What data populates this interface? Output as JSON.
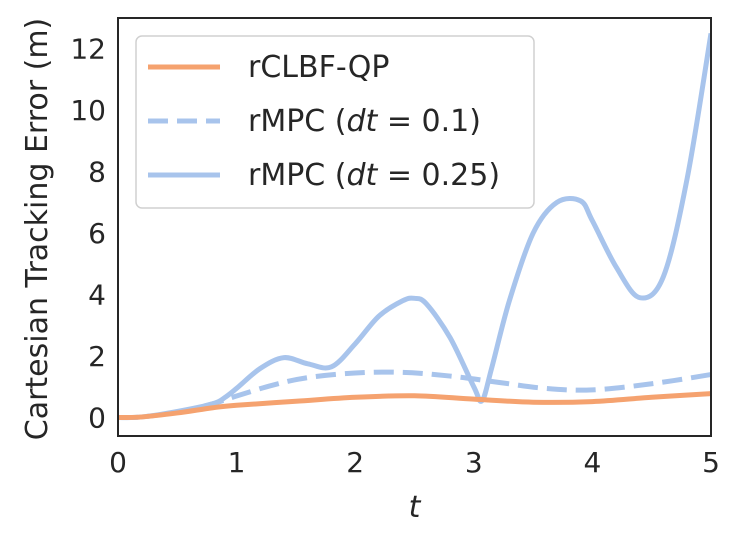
{
  "chart_data": {
    "type": "line",
    "xlabel": "t",
    "ylabel": "Cartesian Tracking Error (m)",
    "xlim": [
      0,
      5
    ],
    "ylim": [
      -0.6,
      13.0
    ],
    "xticks": [
      "0",
      "1",
      "2",
      "3",
      "4",
      "5"
    ],
    "yticks": [
      "0",
      "2",
      "4",
      "6",
      "8",
      "10",
      "12"
    ],
    "grid": false,
    "legend_position": "top-left",
    "series": [
      {
        "name": "rCLBF-QP",
        "label_main": "rCLBF-QP",
        "label_italic": "",
        "label_tail": "",
        "color": "#F5A26F",
        "style": "solid",
        "x": [
          0,
          0.2,
          0.5,
          0.8,
          1.0,
          1.5,
          2.0,
          2.5,
          3.0,
          3.5,
          4.0,
          4.5,
          5.0
        ],
        "y": [
          0,
          0.02,
          0.15,
          0.32,
          0.4,
          0.53,
          0.66,
          0.71,
          0.6,
          0.5,
          0.52,
          0.66,
          0.78
        ]
      },
      {
        "name": "rMPC (dt = 0.1)",
        "label_main": "rMPC (",
        "label_italic": "dt",
        "label_tail": " = 0.1)",
        "color": "#A8C4EC",
        "style": "dashed",
        "x": [
          0,
          0.2,
          0.5,
          0.8,
          1.0,
          1.3,
          1.6,
          2.0,
          2.4,
          2.8,
          3.2,
          3.6,
          4.0,
          4.5,
          5.0
        ],
        "y": [
          0,
          0.02,
          0.18,
          0.45,
          0.7,
          1.05,
          1.3,
          1.45,
          1.47,
          1.35,
          1.15,
          0.95,
          0.9,
          1.1,
          1.4
        ]
      },
      {
        "name": "rMPC (dt = 0.25)",
        "label_main": "rMPC (",
        "label_italic": "dt",
        "label_tail": " = 0.25)",
        "color": "#A8C4EC",
        "style": "solid",
        "x": [
          0,
          0.2,
          0.5,
          0.8,
          0.9,
          1.0,
          1.2,
          1.4,
          1.6,
          1.8,
          2.0,
          2.2,
          2.4,
          2.5,
          2.6,
          2.8,
          3.0,
          3.07,
          3.15,
          3.3,
          3.5,
          3.7,
          3.9,
          4.0,
          4.2,
          4.4,
          4.6,
          4.8,
          5.0
        ],
        "y": [
          0,
          0.02,
          0.2,
          0.45,
          0.65,
          0.95,
          1.6,
          1.95,
          1.75,
          1.65,
          2.4,
          3.3,
          3.8,
          3.88,
          3.7,
          2.6,
          1.0,
          0.55,
          1.6,
          3.8,
          6.0,
          7.0,
          7.05,
          6.4,
          4.9,
          3.9,
          4.6,
          7.8,
          12.5
        ]
      }
    ]
  }
}
